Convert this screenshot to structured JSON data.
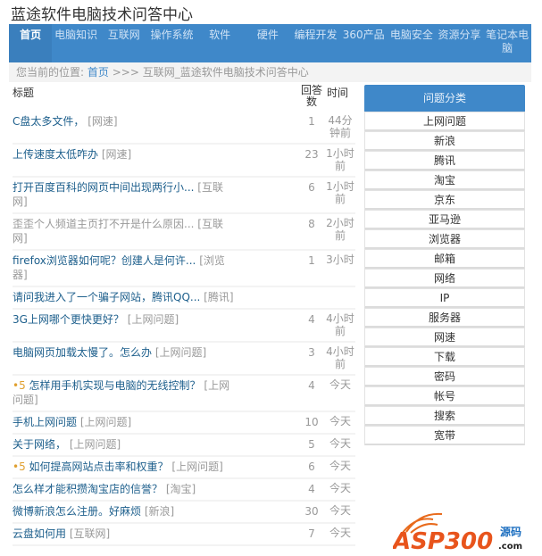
{
  "site_title": "蓝途软件电脑技术问答中心",
  "nav": [
    "首页",
    "电脑知识",
    "互联网",
    "操作系统",
    "软件",
    "硬件",
    "编程开发",
    "360产品",
    "电脑安全",
    "资源分享",
    "笔记本电脑"
  ],
  "breadcrumb": {
    "prefix": "您当前的位置:",
    "home": "首页",
    "sep": ">>>",
    "current": "互联网_蓝途软件电脑技术问答中心"
  },
  "table": {
    "headers": {
      "title": "标题",
      "answers": "回答数",
      "time": "时间"
    },
    "rows": [
      {
        "title": "C盘太多文件，",
        "category": "[网速]",
        "answers": "1",
        "time": "44分钟前"
      },
      {
        "title": "上传速度太低咋办",
        "category": "[网速]",
        "answers": "23",
        "time": "1小时前"
      },
      {
        "title": "打开百度百科的网页中间出现两行小...",
        "category": "[互联网]",
        "answers": "6",
        "time": "1小时前"
      },
      {
        "title": "歪歪个人频道主页打不开是什么原因...",
        "category": "[互联网]",
        "answers": "8",
        "time": "2小时前",
        "visited": true
      },
      {
        "title": "firefox浏览器如何呢？创建人是何许...",
        "category": "[浏览器]",
        "answers": "1",
        "time": "3小时"
      },
      {
        "title": "请问我进入了一个骗子网站，腾讯QQ...",
        "category": "[腾讯]",
        "answers": "",
        "time": ""
      },
      {
        "title": "3G上网哪个更快更好？",
        "category": "[上网问题]",
        "answers": "4",
        "time": "4小时前"
      },
      {
        "title": "电脑网页加载太慢了。怎么办",
        "category": "[上网问题]",
        "answers": "3",
        "time": "4小时前"
      },
      {
        "reward": "5",
        "title": "怎样用手机实现与电脑的无线控制？",
        "category": "[上网问题]",
        "answers": "4",
        "time": "今天"
      },
      {
        "title": "手机上网问题",
        "category": "[上网问题]",
        "answers": "10",
        "time": "今天"
      },
      {
        "title": "关于网络，",
        "category": "[上网问题]",
        "answers": "5",
        "time": "今天"
      },
      {
        "reward": "5",
        "title": "如何提高网站点击率和权重？",
        "category": "[上网问题]",
        "answers": "6",
        "time": "今天"
      },
      {
        "title": "怎么样才能积攒淘宝店的信誉？",
        "category": "[淘宝]",
        "answers": "4",
        "time": "今天"
      },
      {
        "title": "微博新浪怎么注册。好麻烦",
        "category": "[新浪]",
        "answers": "30",
        "time": "今天"
      },
      {
        "title": "云盘如何用",
        "category": "[互联网]",
        "answers": "7",
        "time": "今天"
      }
    ]
  },
  "sidebar": {
    "title": "问题分类",
    "items": [
      "上网问题",
      "新浪",
      "腾讯",
      "淘宝",
      "京东",
      "亚马逊",
      "浏览器",
      "邮箱",
      "网络",
      "IP",
      "服务器",
      "网速",
      "下载",
      "密码",
      "帐号",
      "搜索",
      "宽带"
    ]
  },
  "watermark": {
    "text": "ASP300",
    "sub": "源码",
    "domain": ".com"
  },
  "colors": {
    "accent": "#3f88c9",
    "link": "#1d5f8c",
    "reward": "#e0a030"
  }
}
